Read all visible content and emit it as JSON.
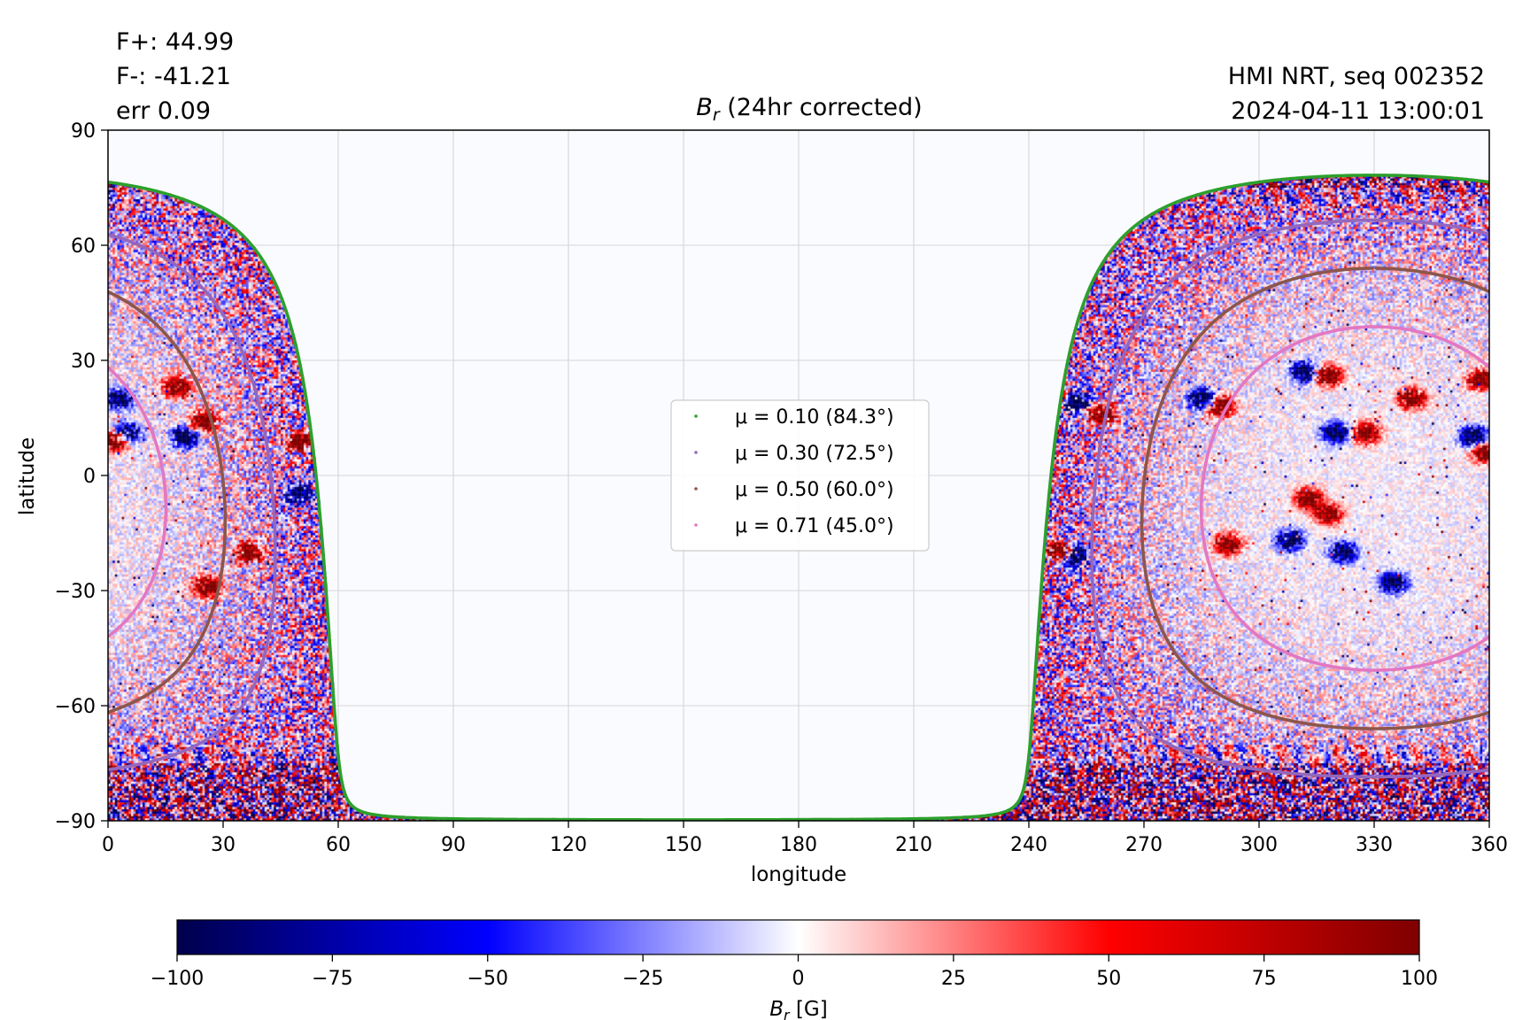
{
  "info": {
    "flux_plus": "F+: 44.99",
    "flux_minus": "F-: -41.21",
    "error": "err 0.09",
    "source": "HMI NRT, seq 002352",
    "timestamp": "2024-04-11 13:00:01"
  },
  "chart_data": {
    "type": "heatmap",
    "title_symbol": "B",
    "title_subscript": "r",
    "title_rest": " (24hr corrected)",
    "xlabel": "longitude",
    "ylabel": "latitude",
    "xlim": [
      0,
      360
    ],
    "ylim": [
      -90,
      90
    ],
    "xticks": [
      0,
      30,
      60,
      90,
      120,
      150,
      180,
      210,
      240,
      270,
      300,
      330,
      360
    ],
    "yticks": [
      -90,
      -60,
      -30,
      0,
      30,
      60,
      90
    ],
    "grid": true,
    "disk_center": {
      "longitude": 330,
      "latitude": -6
    },
    "legend": {
      "placement": "center",
      "entries": [
        {
          "mu": "0.10",
          "angle": "84.3",
          "label": "μ = 0.10 (84.3°)",
          "color": "#2ca02c"
        },
        {
          "mu": "0.30",
          "angle": "72.5",
          "label": "μ = 0.30 (72.5°)",
          "color": "#9467bd"
        },
        {
          "mu": "0.50",
          "angle": "60.0",
          "label": "μ = 0.50 (60.0°)",
          "color": "#8c564b"
        },
        {
          "mu": "0.71",
          "angle": "45.0",
          "label": "μ = 0.71 (45.0°)",
          "color": "#e377c2"
        }
      ]
    },
    "active_regions": [
      {
        "lon": 3,
        "lat": 20,
        "sign": -1
      },
      {
        "lon": 2,
        "lat": 9,
        "sign": 1
      },
      {
        "lon": 5,
        "lat": 11,
        "sign": -1
      },
      {
        "lon": 18,
        "lat": 23,
        "sign": 1
      },
      {
        "lon": 25,
        "lat": 14,
        "sign": 1
      },
      {
        "lon": 20,
        "lat": 10,
        "sign": -1
      },
      {
        "lon": 37,
        "lat": -20,
        "sign": 1
      },
      {
        "lon": 26,
        "lat": -29,
        "sign": 1
      },
      {
        "lon": 50,
        "lat": 9,
        "sign": 1
      },
      {
        "lon": 50,
        "lat": -5,
        "sign": -1
      },
      {
        "lon": 246,
        "lat": 20,
        "sign": 1
      },
      {
        "lon": 252,
        "lat": 19,
        "sign": -1
      },
      {
        "lon": 259,
        "lat": 16,
        "sign": 1
      },
      {
        "lon": 248,
        "lat": -20,
        "sign": 1
      },
      {
        "lon": 252,
        "lat": -21,
        "sign": -1
      },
      {
        "lon": 285,
        "lat": 20,
        "sign": -1
      },
      {
        "lon": 290,
        "lat": 18,
        "sign": 1
      },
      {
        "lon": 312,
        "lat": 27,
        "sign": -1
      },
      {
        "lon": 318,
        "lat": 26,
        "sign": 1
      },
      {
        "lon": 320,
        "lat": 11,
        "sign": -1
      },
      {
        "lon": 328,
        "lat": 11,
        "sign": 1
      },
      {
        "lon": 313,
        "lat": -6,
        "sign": 1
      },
      {
        "lon": 318,
        "lat": -10,
        "sign": 1
      },
      {
        "lon": 308,
        "lat": -17,
        "sign": -1
      },
      {
        "lon": 322,
        "lat": -20,
        "sign": -1
      },
      {
        "lon": 292,
        "lat": -18,
        "sign": 1
      },
      {
        "lon": 335,
        "lat": -28,
        "sign": -1
      },
      {
        "lon": 356,
        "lat": 10,
        "sign": -1
      },
      {
        "lon": 359,
        "lat": 6,
        "sign": 1
      },
      {
        "lon": 358,
        "lat": 25,
        "sign": 1
      },
      {
        "lon": 340,
        "lat": 20,
        "sign": 1
      }
    ],
    "colorbar": {
      "label_symbol": "B",
      "label_subscript": "r",
      "label_unit": " [G]",
      "range": [
        -100,
        100
      ],
      "ticks": [
        "−100",
        "−75",
        "−50",
        "−25",
        "0",
        "25",
        "50",
        "75",
        "100"
      ],
      "colors": [
        "#00004c",
        "#0000ff",
        "#ffffff",
        "#ff0000",
        "#7f0000"
      ]
    }
  }
}
